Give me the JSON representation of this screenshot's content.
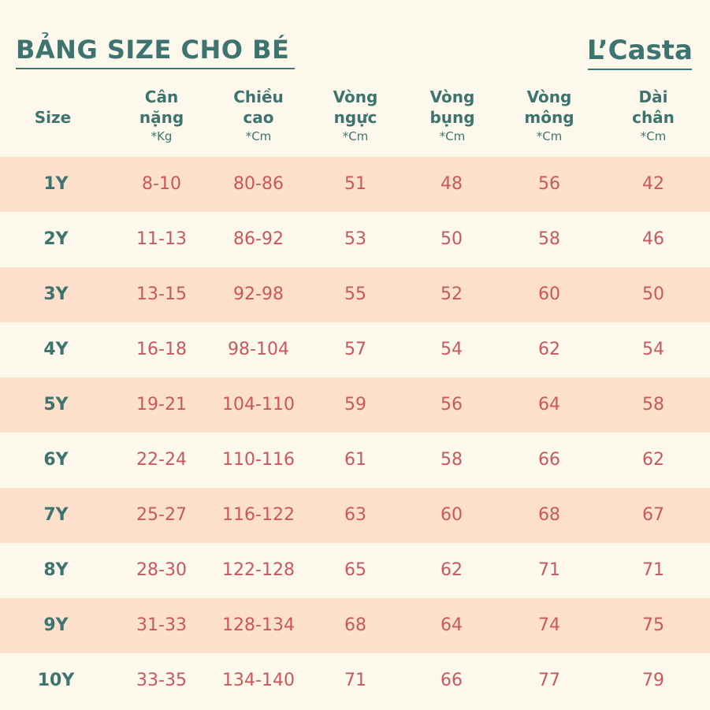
{
  "title": "BẢNG SIZE CHO BÉ",
  "brand": "L’Casta",
  "columns": [
    {
      "label1": "Size",
      "label2": "",
      "unit": ""
    },
    {
      "label1": "Cân",
      "label2": "nặng",
      "unit": "*Kg"
    },
    {
      "label1": "Chiều",
      "label2": "cao",
      "unit": "*Cm"
    },
    {
      "label1": "Vòng",
      "label2": "ngực",
      "unit": "*Cm"
    },
    {
      "label1": "Vòng",
      "label2": "bụng",
      "unit": "*Cm"
    },
    {
      "label1": "Vòng",
      "label2": "mông",
      "unit": "*Cm"
    },
    {
      "label1": "Dài",
      "label2": "chân",
      "unit": "*Cm"
    }
  ],
  "rows": [
    [
      "1Y",
      "8-10",
      "80-86",
      "51",
      "48",
      "56",
      "42"
    ],
    [
      "2Y",
      "11-13",
      "86-92",
      "53",
      "50",
      "58",
      "46"
    ],
    [
      "3Y",
      "13-15",
      "92-98",
      "55",
      "52",
      "60",
      "50"
    ],
    [
      "4Y",
      "16-18",
      "98-104",
      "57",
      "54",
      "62",
      "54"
    ],
    [
      "5Y",
      "19-21",
      "104-110",
      "59",
      "56",
      "64",
      "58"
    ],
    [
      "6Y",
      "22-24",
      "110-116",
      "61",
      "58",
      "66",
      "62"
    ],
    [
      "7Y",
      "25-27",
      "116-122",
      "63",
      "60",
      "68",
      "67"
    ],
    [
      "8Y",
      "28-30",
      "122-128",
      "65",
      "62",
      "71",
      "71"
    ],
    [
      "9Y",
      "31-33",
      "128-134",
      "68",
      "64",
      "74",
      "75"
    ],
    [
      "10Y",
      "33-35",
      "134-140",
      "71",
      "66",
      "77",
      "79"
    ]
  ],
  "colors": {
    "teal": "#3d7470",
    "red": "#c9585c",
    "stripe": "#fde0cb",
    "background": "#fdf8ec"
  }
}
